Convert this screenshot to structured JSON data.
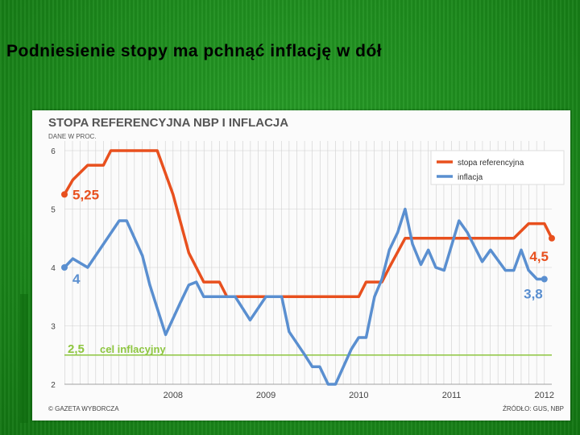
{
  "slide": {
    "title": "Podniesienie stopy ma pchnąć inflację w dół"
  },
  "chart_data": {
    "type": "line",
    "title": "STOPA REFERENCYJNA NBP I INFLACJA",
    "subtitle": "DANE W PROC.",
    "xlabel": "",
    "ylabel": "",
    "ylim": [
      2,
      6
    ],
    "xlim": [
      2007.33,
      2012.58
    ],
    "yticks": [
      "2",
      "3",
      "4",
      "5",
      "6"
    ],
    "xticks": [
      "2008",
      "2009",
      "2010",
      "2011",
      "2012"
    ],
    "grid": true,
    "legend_position": "top-right",
    "series": [
      {
        "name": "stopa referencyjna",
        "color": "#e8501e",
        "points": [
          [
            2007.33,
            5.25
          ],
          [
            2007.42,
            5.5
          ],
          [
            2007.58,
            5.75
          ],
          [
            2007.75,
            5.75
          ],
          [
            2007.83,
            6.0
          ],
          [
            2008.0,
            6.0
          ],
          [
            2008.17,
            6.0
          ],
          [
            2008.33,
            6.0
          ],
          [
            2008.5,
            5.25
          ],
          [
            2008.67,
            4.25
          ],
          [
            2008.83,
            3.75
          ],
          [
            2009.0,
            3.75
          ],
          [
            2009.08,
            3.5
          ],
          [
            2009.25,
            3.5
          ],
          [
            2009.5,
            3.5
          ],
          [
            2009.75,
            3.5
          ],
          [
            2010.0,
            3.5
          ],
          [
            2010.25,
            3.5
          ],
          [
            2010.5,
            3.5
          ],
          [
            2010.58,
            3.75
          ],
          [
            2010.75,
            3.75
          ],
          [
            2010.83,
            4.0
          ],
          [
            2011.0,
            4.5
          ],
          [
            2011.25,
            4.5
          ],
          [
            2011.5,
            4.5
          ],
          [
            2011.75,
            4.5
          ],
          [
            2012.0,
            4.5
          ],
          [
            2012.17,
            4.5
          ],
          [
            2012.33,
            4.75
          ],
          [
            2012.5,
            4.75
          ],
          [
            2012.58,
            4.5
          ]
        ]
      },
      {
        "name": "inflacja",
        "color": "#5a8fd0",
        "points": [
          [
            2007.33,
            4.0
          ],
          [
            2007.42,
            4.15
          ],
          [
            2007.58,
            4.0
          ],
          [
            2007.75,
            4.4
          ],
          [
            2007.92,
            4.8
          ],
          [
            2008.0,
            4.8
          ],
          [
            2008.17,
            4.2
          ],
          [
            2008.25,
            3.7
          ],
          [
            2008.42,
            2.85
          ],
          [
            2008.58,
            3.4
          ],
          [
            2008.67,
            3.7
          ],
          [
            2008.75,
            3.75
          ],
          [
            2008.83,
            3.5
          ],
          [
            2009.0,
            3.5
          ],
          [
            2009.17,
            3.5
          ],
          [
            2009.33,
            3.1
          ],
          [
            2009.5,
            3.5
          ],
          [
            2009.67,
            3.5
          ],
          [
            2009.75,
            2.9
          ],
          [
            2009.92,
            2.5
          ],
          [
            2010.0,
            2.3
          ],
          [
            2010.08,
            2.3
          ],
          [
            2010.17,
            2.0
          ],
          [
            2010.25,
            2.0
          ],
          [
            2010.42,
            2.6
          ],
          [
            2010.5,
            2.8
          ],
          [
            2010.58,
            2.8
          ],
          [
            2010.67,
            3.5
          ],
          [
            2010.75,
            3.8
          ],
          [
            2010.83,
            4.3
          ],
          [
            2010.92,
            4.6
          ],
          [
            2011.0,
            5.0
          ],
          [
            2011.08,
            4.4
          ],
          [
            2011.17,
            4.05
          ],
          [
            2011.25,
            4.3
          ],
          [
            2011.33,
            4.0
          ],
          [
            2011.42,
            3.95
          ],
          [
            2011.58,
            4.8
          ],
          [
            2011.67,
            4.6
          ],
          [
            2011.83,
            4.1
          ],
          [
            2011.92,
            4.3
          ],
          [
            2012.08,
            3.95
          ],
          [
            2012.17,
            3.95
          ],
          [
            2012.25,
            4.3
          ],
          [
            2012.33,
            3.95
          ],
          [
            2012.42,
            3.8
          ],
          [
            2012.5,
            3.8
          ]
        ]
      }
    ],
    "reference_line": {
      "value": 2.5,
      "label_value": "2,5",
      "label_text": "cel inflacyjny",
      "color": "#8dc63f"
    },
    "annotations": [
      {
        "text": "5,25",
        "color": "#e8501e"
      },
      {
        "text": "4",
        "color": "#5a8fd0"
      },
      {
        "text": "4,5",
        "color": "#e8501e"
      },
      {
        "text": "3,8",
        "color": "#5a8fd0"
      }
    ],
    "footer_left": "© GAZETA WYBORCZA",
    "footer_right": "ŹRÓDŁO: GUS, NBP"
  }
}
